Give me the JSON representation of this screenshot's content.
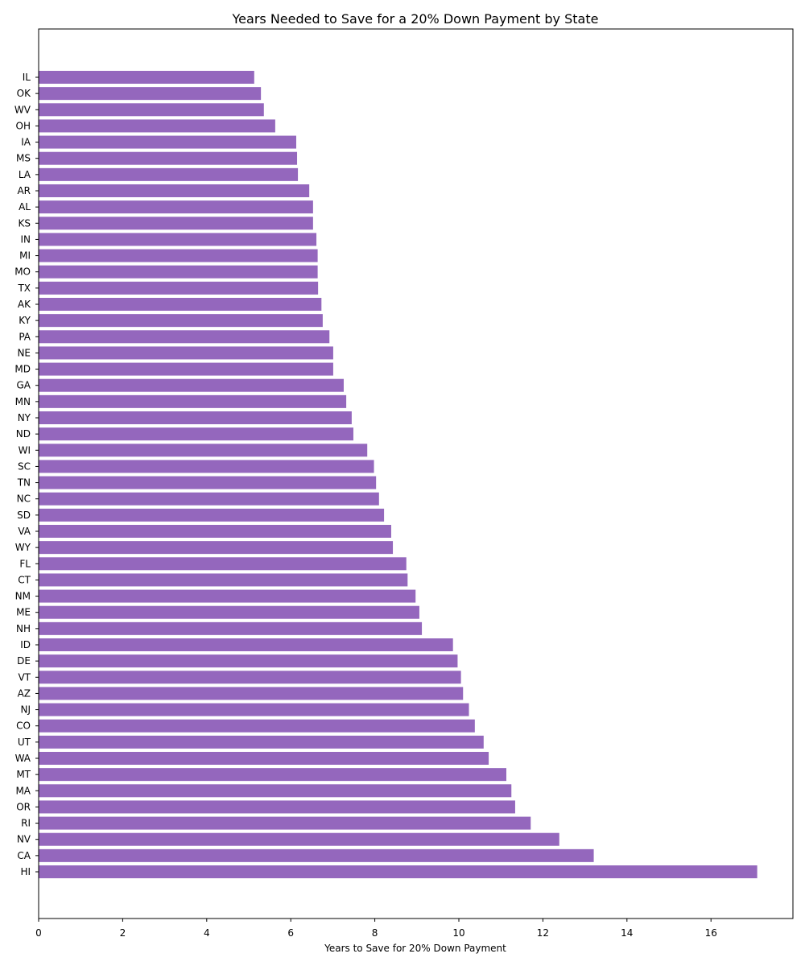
{
  "chart_data": {
    "type": "bar",
    "orientation": "horizontal",
    "title": "Years Needed to Save for a 20% Down Payment by State",
    "xlabel": "Years to Save for 20% Down Payment",
    "ylabel": "",
    "xlim": [
      0,
      17.95
    ],
    "x_ticks": [
      0,
      2,
      4,
      6,
      8,
      10,
      12,
      14,
      16
    ],
    "grid": false,
    "legend": "none",
    "bar_color": "#9467bd",
    "categories": [
      "IL",
      "OK",
      "WV",
      "OH",
      "IA",
      "MS",
      "LA",
      "AR",
      "AL",
      "KS",
      "IN",
      "MI",
      "MO",
      "TX",
      "AK",
      "KY",
      "PA",
      "NE",
      "MD",
      "GA",
      "MN",
      "NY",
      "ND",
      "WI",
      "SC",
      "TN",
      "NC",
      "SD",
      "VA",
      "WY",
      "FL",
      "CT",
      "NM",
      "ME",
      "NH",
      "ID",
      "DE",
      "VT",
      "AZ",
      "NJ",
      "CO",
      "UT",
      "WA",
      "MT",
      "MA",
      "OR",
      "RI",
      "NV",
      "CA",
      "HI"
    ],
    "values": [
      5.13,
      5.29,
      5.36,
      5.63,
      6.13,
      6.15,
      6.17,
      6.44,
      6.53,
      6.53,
      6.61,
      6.64,
      6.64,
      6.65,
      6.73,
      6.76,
      6.92,
      7.01,
      7.01,
      7.26,
      7.32,
      7.45,
      7.49,
      7.82,
      7.98,
      8.03,
      8.1,
      8.22,
      8.39,
      8.43,
      8.75,
      8.78,
      8.97,
      9.06,
      9.12,
      9.86,
      9.97,
      10.05,
      10.1,
      10.24,
      10.38,
      10.59,
      10.71,
      11.13,
      11.25,
      11.34,
      11.71,
      12.39,
      13.21,
      17.1
    ]
  }
}
